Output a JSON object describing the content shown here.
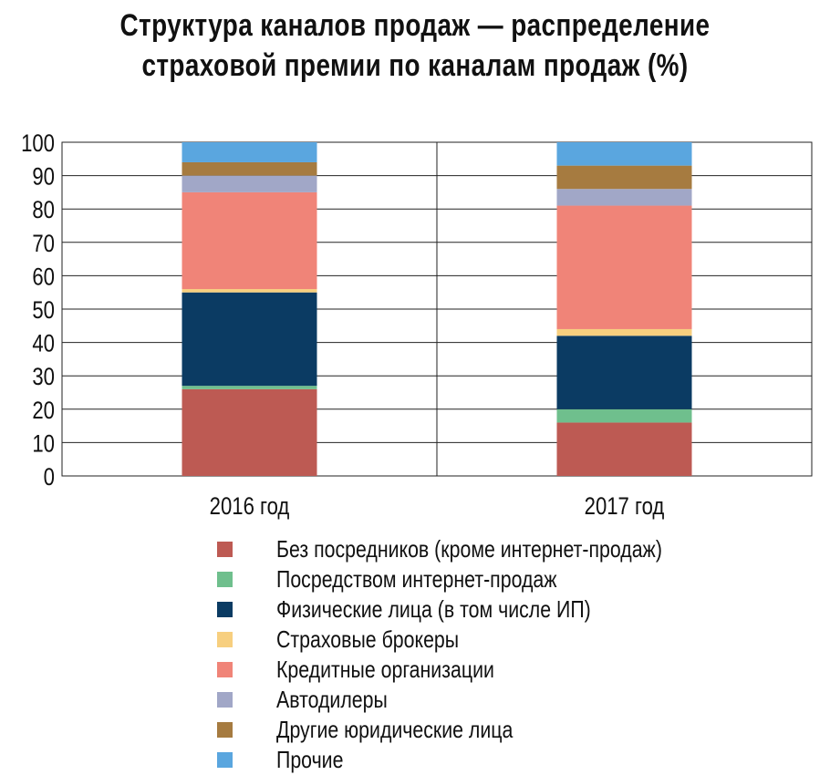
{
  "title_lines": [
    "Структура каналов продаж — распределение",
    "страховой премии по каналам продаж (%)"
  ],
  "chart_data": {
    "type": "bar",
    "stacked": true,
    "categories": [
      "2016 год",
      "2017 год"
    ],
    "ylim": [
      0,
      100
    ],
    "yticks": [
      0,
      10,
      20,
      30,
      40,
      50,
      60,
      70,
      80,
      90,
      100
    ],
    "grid": true,
    "legend_position": "bottom",
    "series": [
      {
        "name": "Без посредников (кроме интернет-продаж)",
        "color": "#bd5a53",
        "values": [
          26,
          16
        ]
      },
      {
        "name": "Посредством интернет-продаж",
        "color": "#6fbf8d",
        "values": [
          1,
          4
        ]
      },
      {
        "name": "Физические лица (в том числе ИП)",
        "color": "#0b3b63",
        "values": [
          28,
          22
        ]
      },
      {
        "name": "Страховые брокеры",
        "color": "#f7cf7f",
        "values": [
          1,
          2
        ]
      },
      {
        "name": "Кредитные организации",
        "color": "#f08478",
        "values": [
          29,
          37
        ]
      },
      {
        "name": "Автодилеры",
        "color": "#a1a7c7",
        "values": [
          5,
          5
        ]
      },
      {
        "name": "Другие юридические лица",
        "color": "#a67b40",
        "values": [
          4,
          7
        ]
      },
      {
        "name": "Прочие",
        "color": "#5aa6df",
        "values": [
          6,
          7
        ]
      }
    ]
  }
}
